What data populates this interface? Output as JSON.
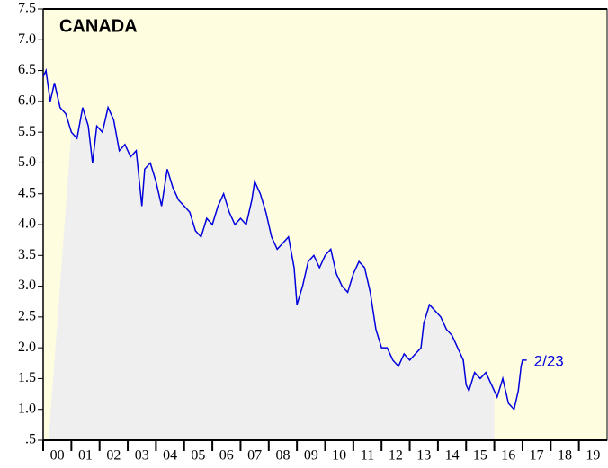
{
  "chart_data": {
    "type": "line",
    "title": "CANADA",
    "annotation": "2/23",
    "color": "#0000dd",
    "x": [
      2000.0,
      2000.1,
      2000.25,
      2000.4,
      2000.6,
      2000.8,
      2001.0,
      2001.2,
      2001.4,
      2001.6,
      2001.75,
      2001.9,
      2002.1,
      2002.3,
      2002.5,
      2002.7,
      2002.9,
      2003.1,
      2003.3,
      2003.5,
      2003.6,
      2003.8,
      2004.0,
      2004.2,
      2004.4,
      2004.6,
      2004.8,
      2005.0,
      2005.2,
      2005.4,
      2005.6,
      2005.8,
      2006.0,
      2006.2,
      2006.4,
      2006.6,
      2006.8,
      2007.0,
      2007.2,
      2007.4,
      2007.5,
      2007.7,
      2007.9,
      2008.1,
      2008.3,
      2008.5,
      2008.7,
      2008.9,
      2009.0,
      2009.2,
      2009.4,
      2009.6,
      2009.8,
      2010.0,
      2010.2,
      2010.4,
      2010.6,
      2010.8,
      2011.0,
      2011.2,
      2011.4,
      2011.6,
      2011.8,
      2012.0,
      2012.2,
      2012.4,
      2012.6,
      2012.8,
      2013.0,
      2013.2,
      2013.4,
      2013.5,
      2013.7,
      2013.9,
      2014.1,
      2014.3,
      2014.5,
      2014.7,
      2014.9,
      2015.0,
      2015.1,
      2015.3,
      2015.5,
      2015.7,
      2015.9,
      2016.1,
      2016.3,
      2016.5,
      2016.7,
      2016.85,
      2016.95,
      2017.0,
      2017.15
    ],
    "values": [
      6.4,
      6.5,
      6.0,
      6.3,
      5.9,
      5.8,
      5.5,
      5.4,
      5.9,
      5.6,
      5.0,
      5.6,
      5.5,
      5.9,
      5.7,
      5.2,
      5.3,
      5.1,
      5.2,
      4.3,
      4.9,
      5.0,
      4.7,
      4.3,
      4.9,
      4.6,
      4.4,
      4.3,
      4.2,
      3.9,
      3.8,
      4.1,
      4.0,
      4.3,
      4.5,
      4.2,
      4.0,
      4.1,
      4.0,
      4.4,
      4.7,
      4.5,
      4.2,
      3.8,
      3.6,
      3.7,
      3.8,
      3.3,
      2.7,
      3.0,
      3.4,
      3.5,
      3.3,
      3.5,
      3.6,
      3.2,
      3.0,
      2.9,
      3.2,
      3.4,
      3.3,
      2.9,
      2.3,
      2.0,
      2.0,
      1.8,
      1.7,
      1.9,
      1.8,
      1.9,
      2.0,
      2.4,
      2.7,
      2.6,
      2.5,
      2.3,
      2.2,
      2.0,
      1.8,
      1.4,
      1.3,
      1.6,
      1.5,
      1.6,
      1.4,
      1.2,
      1.5,
      1.1,
      1.0,
      1.3,
      1.7,
      1.8,
      1.8
    ],
    "xlim": [
      2000,
      2020
    ],
    "xticks": [
      {
        "value": 2000,
        "label": "00"
      },
      {
        "value": 2001,
        "label": "01"
      },
      {
        "value": 2002,
        "label": "02"
      },
      {
        "value": 2003,
        "label": "03"
      },
      {
        "value": 2004,
        "label": "04"
      },
      {
        "value": 2005,
        "label": "05"
      },
      {
        "value": 2006,
        "label": "06"
      },
      {
        "value": 2007,
        "label": "07"
      },
      {
        "value": 2008,
        "label": "08"
      },
      {
        "value": 2009,
        "label": "09"
      },
      {
        "value": 2010,
        "label": "10"
      },
      {
        "value": 2011,
        "label": "11"
      },
      {
        "value": 2012,
        "label": "12"
      },
      {
        "value": 2013,
        "label": "13"
      },
      {
        "value": 2014,
        "label": "14"
      },
      {
        "value": 2015,
        "label": "15"
      },
      {
        "value": 2016,
        "label": "16"
      },
      {
        "value": 2017,
        "label": "17"
      },
      {
        "value": 2018,
        "label": "18"
      },
      {
        "value": 2019,
        "label": "19"
      }
    ],
    "ylim": [
      0.5,
      7.5
    ],
    "yticks": [
      {
        "value": 0.5,
        "label": ".5"
      },
      {
        "value": 1,
        "label": "1.0"
      },
      1.5,
      {
        "value": 2,
        "label": "2.0"
      },
      2.5,
      {
        "value": 3,
        "label": "3.0"
      },
      3.5,
      {
        "value": 4,
        "label": "4.0"
      },
      4.5,
      {
        "value": 5,
        "label": "5.0"
      },
      5.5,
      {
        "value": 6,
        "label": "6.0"
      },
      6.5,
      {
        "value": 7,
        "label": "7.0"
      },
      7.5
    ]
  }
}
